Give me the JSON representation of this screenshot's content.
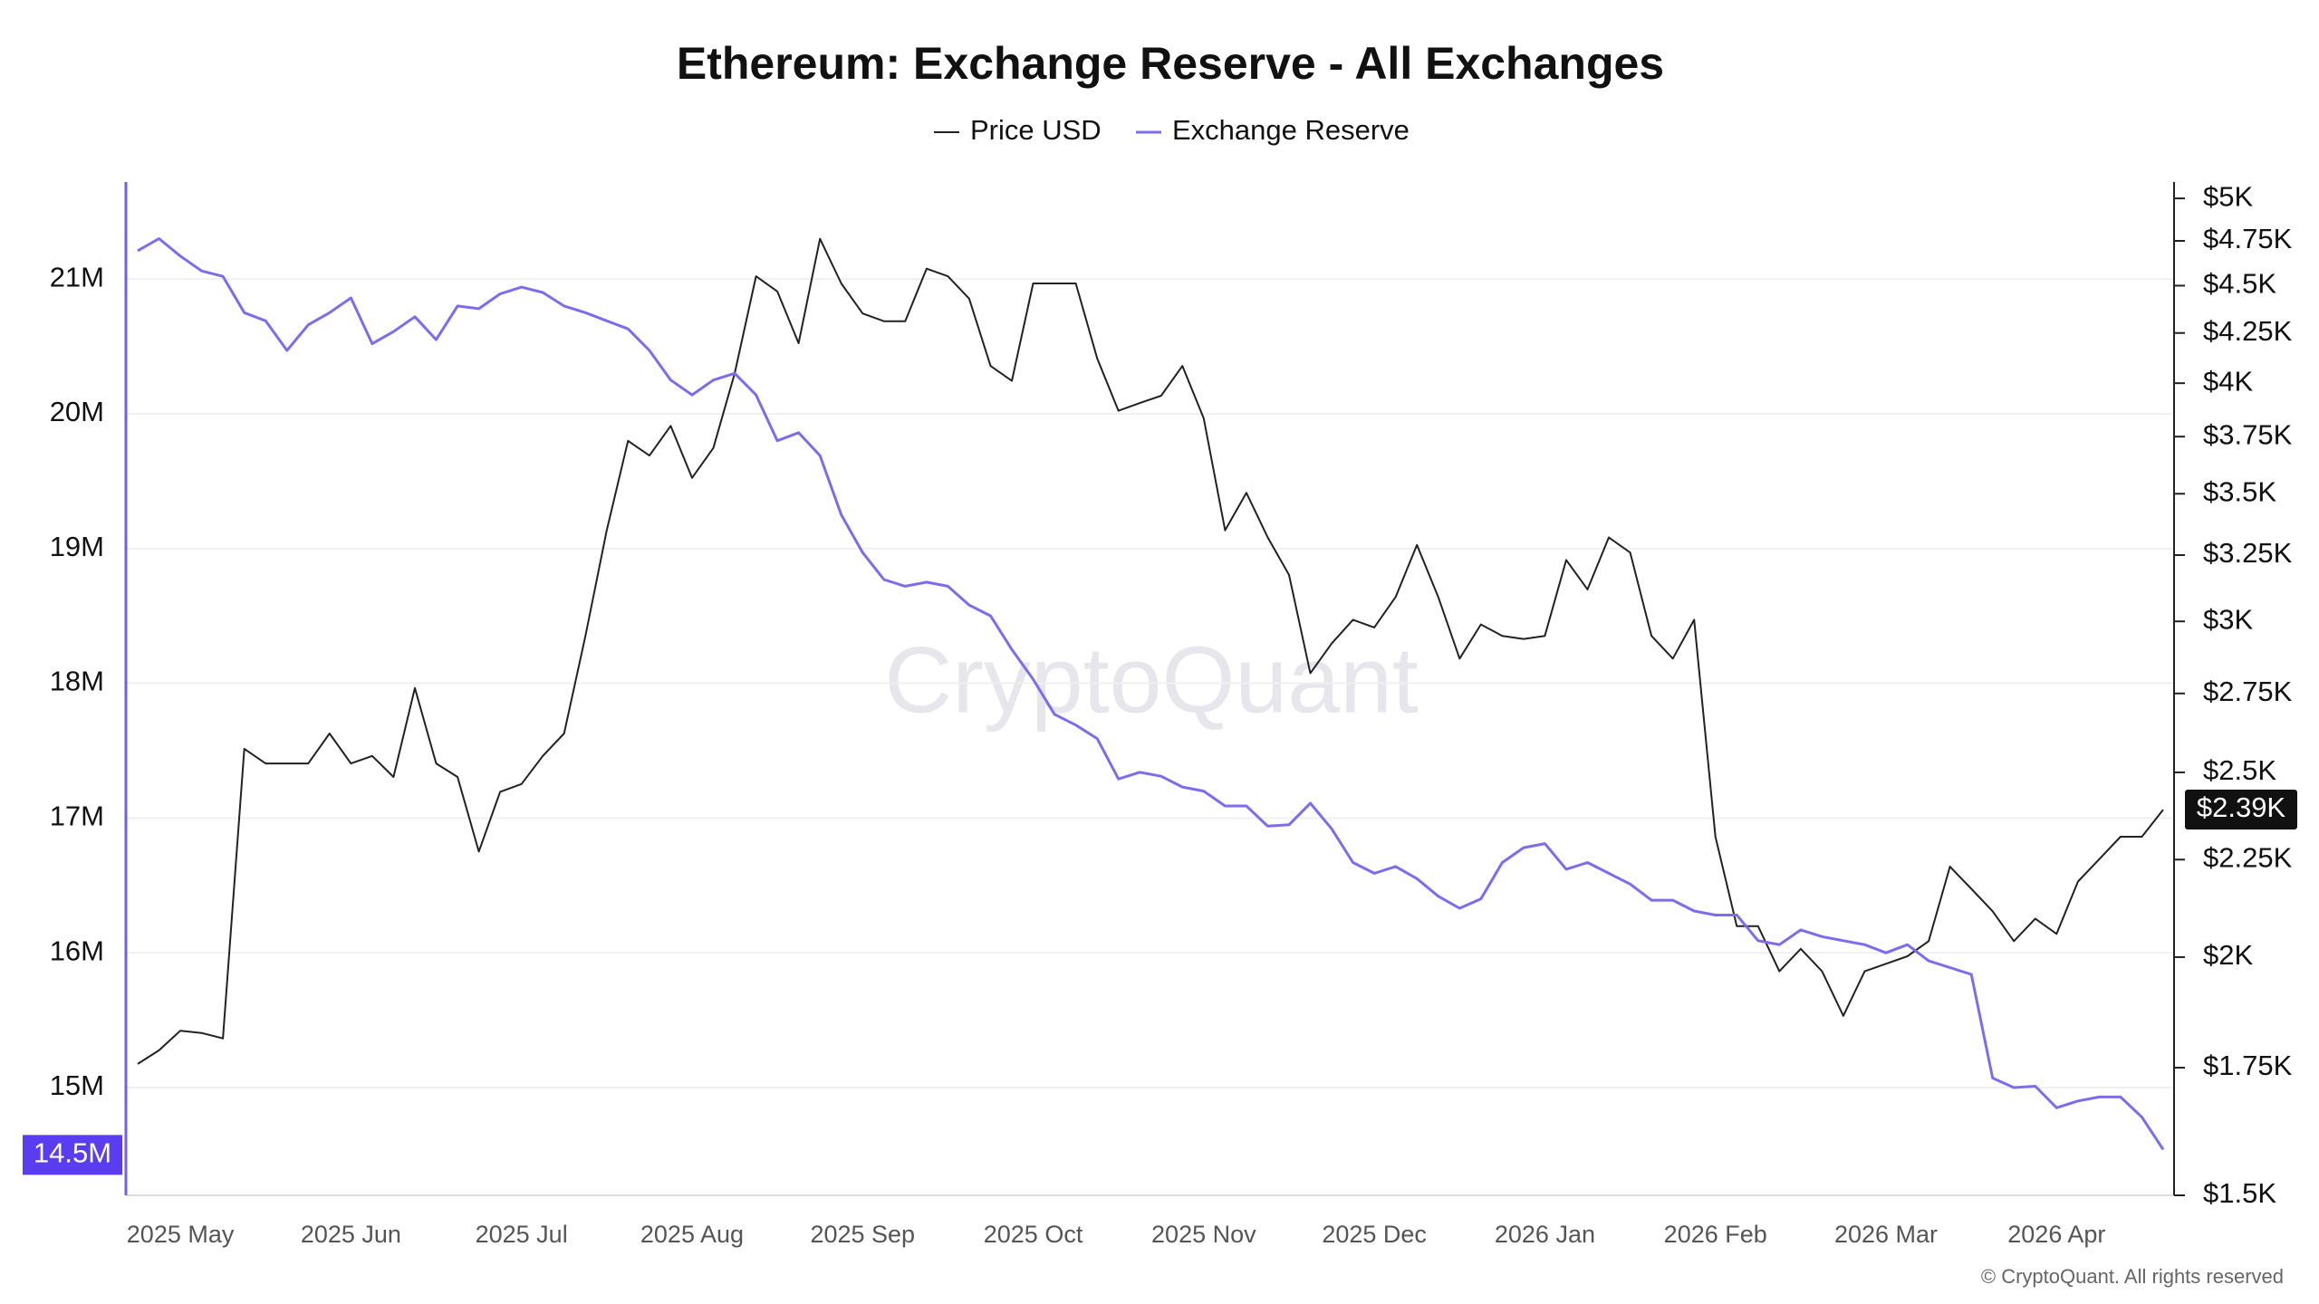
{
  "chart_data": {
    "type": "line",
    "title": "Ethereum: Exchange Reserve - All Exchanges",
    "watermark": "CryptoQuant",
    "copyright": "© CryptoQuant. All rights reserved",
    "categories": [
      null,
      null,
      "2025 May",
      null,
      null,
      null,
      null,
      null,
      null,
      null,
      "2025 Jun",
      null,
      null,
      null,
      null,
      null,
      null,
      null,
      "2025 Jul",
      null,
      null,
      null,
      null,
      null,
      null,
      null,
      "2025 Aug",
      null,
      null,
      null,
      null,
      null,
      null,
      null,
      "2025 Sep",
      null,
      null,
      null,
      null,
      null,
      null,
      null,
      "2025 Oct",
      null,
      null,
      null,
      null,
      null,
      null,
      null,
      "2025 Nov",
      null,
      null,
      null,
      null,
      null,
      null,
      null,
      "2025 Dec",
      null,
      null,
      null,
      null,
      null,
      null,
      null,
      "2026 Jan",
      null,
      null,
      null,
      null,
      null,
      null,
      null,
      "2026 Feb",
      null,
      null,
      null,
      null,
      null,
      null,
      null,
      "2026 Mar",
      null,
      null,
      null,
      null,
      null,
      null,
      null,
      "2026 Apr",
      null,
      null,
      null,
      null,
      null
    ],
    "series": [
      {
        "name": "Price USD",
        "color": "#222222",
        "axis": "y2",
        "current_label": {
          "value": 2390,
          "label": "$2.39K"
        },
        "values": [
          1758,
          1787,
          1830,
          1825,
          1813,
          2572,
          2527,
          2527,
          2527,
          2620,
          2527,
          2550,
          2486,
          2768,
          2527,
          2486,
          2272,
          2442,
          2465,
          2550,
          2620,
          2948,
          3349,
          3731,
          3665,
          3799,
          3568,
          3699,
          4047,
          4551,
          4469,
          4198,
          4762,
          4512,
          4351,
          4311,
          4311,
          4593,
          4551,
          4430,
          4084,
          4011,
          4512,
          4512,
          4512,
          4122,
          3869,
          3905,
          3940,
          4084,
          3834,
          3349,
          3504,
          3320,
          3173,
          2818,
          2921,
          3006,
          2978,
          3090,
          3290,
          3090,
          2868,
          2989,
          2948,
          2937,
          2948,
          3231,
          3118,
          3320,
          3260,
          2948,
          2868,
          3006,
          2313,
          2076,
          2076,
          1966,
          2020,
          1966,
          1863,
          1966,
          1984,
          2002,
          2039,
          2231,
          2172,
          2114,
          2039,
          2095,
          2057,
          2191,
          2251,
          2313,
          2313,
          2390
        ]
      },
      {
        "name": "Exchange Reserve",
        "color": "#7b6cf0",
        "current_label": {
          "value": 14.5,
          "label": "14.5M"
        },
        "values": [
          21.21,
          21.3,
          21.17,
          21.06,
          21.02,
          20.75,
          20.69,
          20.47,
          20.66,
          20.75,
          20.86,
          20.52,
          20.61,
          20.72,
          20.55,
          20.8,
          20.78,
          20.89,
          20.94,
          20.9,
          20.8,
          20.75,
          20.69,
          20.63,
          20.47,
          20.25,
          20.14,
          20.25,
          20.3,
          20.14,
          19.8,
          19.86,
          19.69,
          19.25,
          18.97,
          18.77,
          18.72,
          18.75,
          18.72,
          18.58,
          18.5,
          18.25,
          18.03,
          17.77,
          17.69,
          17.59,
          17.29,
          17.34,
          17.31,
          17.23,
          17.2,
          17.09,
          17.09,
          16.94,
          16.95,
          17.11,
          16.92,
          16.67,
          16.59,
          16.64,
          16.55,
          16.42,
          16.33,
          16.4,
          16.67,
          16.78,
          16.81,
          16.62,
          16.67,
          16.59,
          16.51,
          16.39,
          16.39,
          16.31,
          16.28,
          16.28,
          16.09,
          16.06,
          16.17,
          16.12,
          16.09,
          16.06,
          16.0,
          16.06,
          15.94,
          15.89,
          15.84,
          15.07,
          15.0,
          15.01,
          14.85,
          14.9,
          14.93,
          14.93,
          14.78,
          14.54
        ]
      }
    ],
    "ylim": [
      14.2,
      21.72
    ],
    "yticks": [
      {
        "value": 15,
        "label": "15M"
      },
      {
        "value": 16,
        "label": "16M"
      },
      {
        "value": 17,
        "label": "17M"
      },
      {
        "value": 18,
        "label": "18M"
      },
      {
        "value": 19,
        "label": "19M"
      },
      {
        "value": 20,
        "label": "20M"
      },
      {
        "value": 21,
        "label": "21M"
      }
    ],
    "y2lim": [
      1500,
      5100
    ],
    "y2log": true,
    "y2ticks": [
      {
        "value": 1500,
        "label": "$1.5K"
      },
      {
        "value": 1750,
        "label": "$1.75K"
      },
      {
        "value": 2000,
        "label": "$2K"
      },
      {
        "value": 2250,
        "label": "$2.25K"
      },
      {
        "value": 2500,
        "label": "$2.5K"
      },
      {
        "value": 2750,
        "label": "$2.75K"
      },
      {
        "value": 3000,
        "label": "$3K"
      },
      {
        "value": 3250,
        "label": "$3.25K"
      },
      {
        "value": 3500,
        "label": "$3.5K"
      },
      {
        "value": 3750,
        "label": "$3.75K"
      },
      {
        "value": 4000,
        "label": "$4K"
      },
      {
        "value": 4250,
        "label": "$4.25K"
      },
      {
        "value": 4500,
        "label": "$4.5K"
      },
      {
        "value": 4750,
        "label": "$4.75K"
      },
      {
        "value": 5000,
        "label": "$5K"
      }
    ],
    "grid": true
  }
}
